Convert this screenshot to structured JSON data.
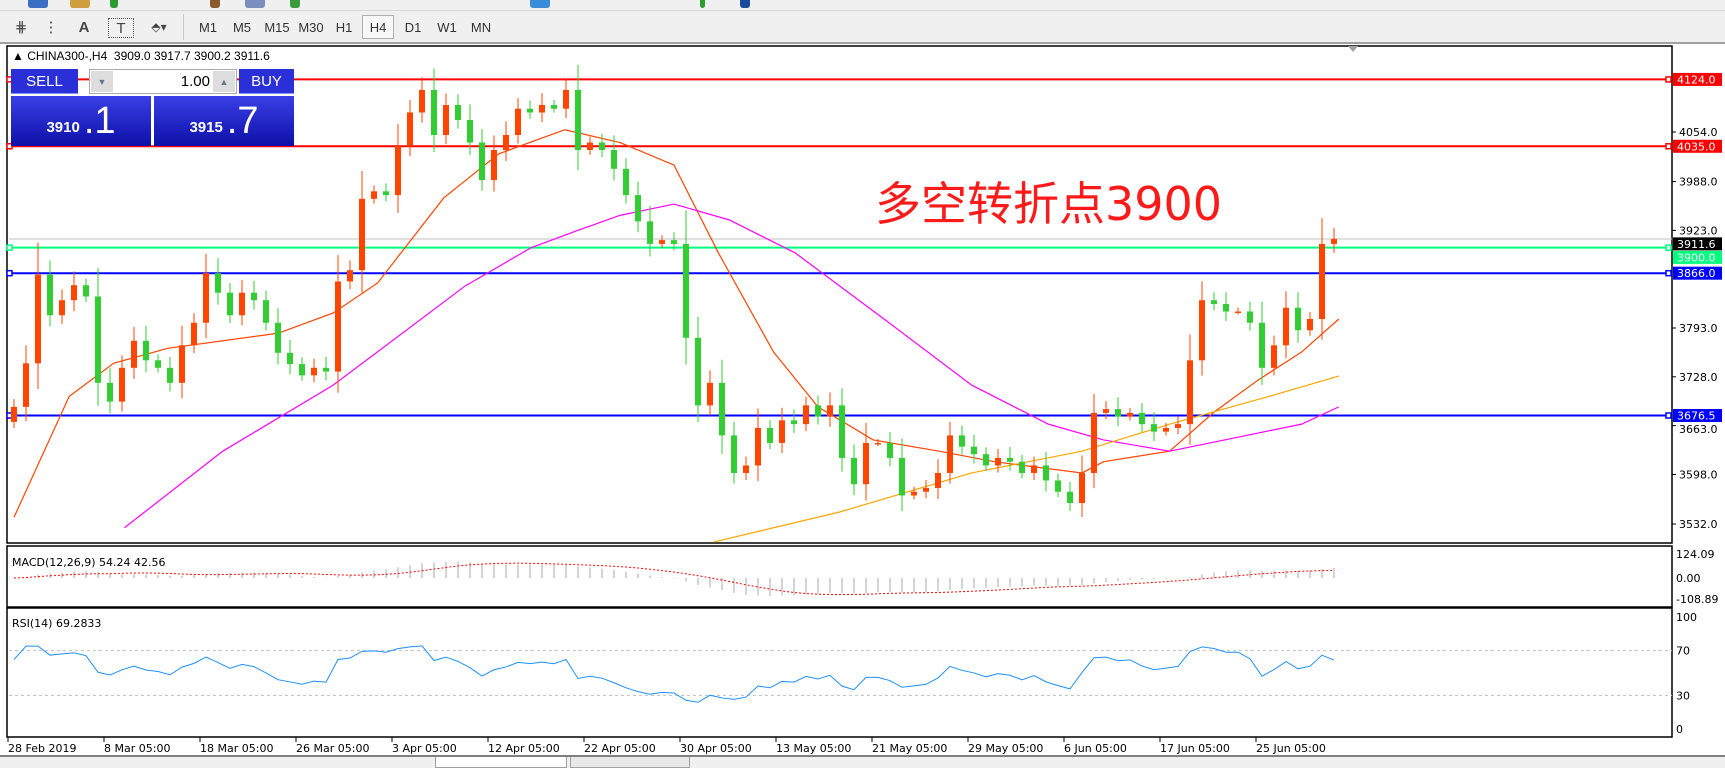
{
  "toolbar": {
    "tools": [
      {
        "icon": "fibonacci-expansion-icon",
        "glyph": "⋕"
      },
      {
        "icon": "fibonacci-fan-icon",
        "glyph": "⋮"
      },
      {
        "icon": "text-icon",
        "glyph": "A"
      },
      {
        "icon": "text-label-icon",
        "glyph": "T"
      },
      {
        "icon": "arrows-dropdown-icon",
        "glyph": "⬘▾"
      }
    ],
    "timeframes": [
      "M1",
      "M5",
      "M15",
      "M30",
      "H1",
      "H4",
      "D1",
      "W1",
      "MN"
    ],
    "active_timeframe": "H4"
  },
  "chart": {
    "header": "▲ CHINA300-,H4  3909.0 3917.7 3900.2 3911.6",
    "symbol": "CHINA300-",
    "annotation": "多空转折点3900",
    "annotation_color": "#ff1a1a",
    "bull_color": "#ff4500",
    "bear_color": "#32cd32",
    "trade_panel": {
      "sell_label": "SELL",
      "buy_label": "BUY",
      "lot": "1.00",
      "sell_big": "3910",
      "sell_small": ".1",
      "buy_big": "3915",
      "buy_small": ".7"
    },
    "price_ticks": [
      "4054.0",
      "3988.0",
      "3923.0",
      "3793.0",
      "3728.0",
      "3663.0",
      "3598.0",
      "3532.0"
    ],
    "levels": [
      {
        "price": 4124.0,
        "label": "4124.0",
        "color": "#ff0000"
      },
      {
        "price": 4035.0,
        "label": "4035.0",
        "color": "#ff0000"
      },
      {
        "price": 3911.6,
        "label": "3911.6",
        "color": "#c0c0c0",
        "label_bg": "#000000"
      },
      {
        "price": 3900.0,
        "label": "3900.0",
        "color": "#00ff7f"
      },
      {
        "price": 3866.0,
        "label": "3866.0",
        "color": "#0000ff"
      },
      {
        "price": 3676.5,
        "label": "3676.5",
        "color": "#0000ff"
      }
    ],
    "time_labels": [
      "28 Feb 2019",
      "8 Mar 05:00",
      "18 Mar 05:00",
      "26 Mar 05:00",
      "3 Apr 05:00",
      "12 Apr 05:00",
      "22 Apr 05:00",
      "30 Apr 05:00",
      "13 May 05:00",
      "21 May 05:00",
      "29 May 05:00",
      "6 Jun 05:00",
      "17 Jun 05:00",
      "25 Jun 05:00"
    ]
  },
  "chart_data": {
    "type": "candlestick",
    "ylim": [
      3500,
      4160
    ],
    "close": [
      3688,
      3746,
      3864,
      3810,
      3830,
      3850,
      3835,
      3720,
      3695,
      3740,
      3776,
      3750,
      3740,
      3720,
      3770,
      3800,
      3866,
      3840,
      3810,
      3840,
      3830,
      3800,
      3760,
      3745,
      3730,
      3740,
      3735,
      3855,
      3870,
      3965,
      3975,
      3970,
      4035,
      4080,
      4110,
      4050,
      4090,
      4070,
      4040,
      3990,
      4030,
      4050,
      4085,
      4080,
      4090,
      4085,
      4110,
      4030,
      4040,
      4030,
      4005,
      3970,
      3935,
      3905,
      3910,
      3905,
      3780,
      3690,
      3720,
      3650,
      3600,
      3610,
      3660,
      3640,
      3670,
      3665,
      3690,
      3675,
      3690,
      3620,
      3585,
      3640,
      3640,
      3620,
      3570,
      3575,
      3580,
      3600,
      3650,
      3635,
      3625,
      3610,
      3620,
      3615,
      3600,
      3610,
      3590,
      3575,
      3560,
      3600,
      3680,
      3685,
      3675,
      3680,
      3665,
      3655,
      3660,
      3665,
      3750,
      3830,
      3825,
      3815,
      3815,
      3800,
      3740,
      3770,
      3820,
      3790,
      3805,
      3905,
      3911.6
    ],
    "moving_averages": [
      {
        "color": "#ff4500",
        "points": [
          [
            0,
            3541
          ],
          [
            4.6,
            3702
          ],
          [
            8.3,
            3746
          ],
          [
            12.8,
            3766
          ],
          [
            22,
            3786
          ],
          [
            26.6,
            3813
          ],
          [
            30.3,
            3853
          ],
          [
            35.8,
            3966
          ],
          [
            40.4,
            4025
          ],
          [
            45.9,
            4057
          ],
          [
            50.5,
            4040
          ],
          [
            55,
            4010
          ],
          [
            58.7,
            3893
          ],
          [
            63.3,
            3761
          ],
          [
            67,
            3688
          ],
          [
            71.6,
            3644
          ],
          [
            77.1,
            3629
          ],
          [
            81.7,
            3615
          ],
          [
            89,
            3600
          ],
          [
            90.8,
            3615
          ],
          [
            96.3,
            3629
          ],
          [
            100,
            3681
          ],
          [
            103.7,
            3724
          ],
          [
            107.3,
            3761
          ],
          [
            110.4,
            3805
          ]
        ]
      },
      {
        "color": "#ff00ff",
        "points": [
          [
            9.2,
            3527
          ],
          [
            17.4,
            3629
          ],
          [
            26.6,
            3717
          ],
          [
            37.6,
            3849
          ],
          [
            43.1,
            3900
          ],
          [
            46.8,
            3922
          ],
          [
            50.5,
            3943
          ],
          [
            55,
            3958
          ],
          [
            59.6,
            3937
          ],
          [
            65.1,
            3893
          ],
          [
            72.5,
            3805
          ],
          [
            79.8,
            3717
          ],
          [
            86.2,
            3665
          ],
          [
            90.8,
            3644
          ],
          [
            96.3,
            3629
          ],
          [
            101.8,
            3647
          ],
          [
            107.3,
            3665
          ],
          [
            110.4,
            3688
          ]
        ]
      },
      {
        "color": "#ffa500",
        "points": [
          [
            58.3,
            3508
          ],
          [
            68.8,
            3548
          ],
          [
            79.8,
            3600
          ],
          [
            89,
            3629
          ],
          [
            96.3,
            3665
          ],
          [
            104.6,
            3702
          ],
          [
            110.4,
            3729
          ]
        ]
      }
    ],
    "macd": {
      "label": "MACD(12,26,9) 54.24 42.56",
      "ticks": [
        "124.09",
        "0.00",
        "-108.89"
      ],
      "max": 124.09,
      "min": -108.89
    },
    "rsi": {
      "label": "RSI(14) 69.2833",
      "ticks": [
        "100",
        "70",
        "30",
        "0"
      ],
      "levels": [
        70,
        30
      ]
    }
  }
}
